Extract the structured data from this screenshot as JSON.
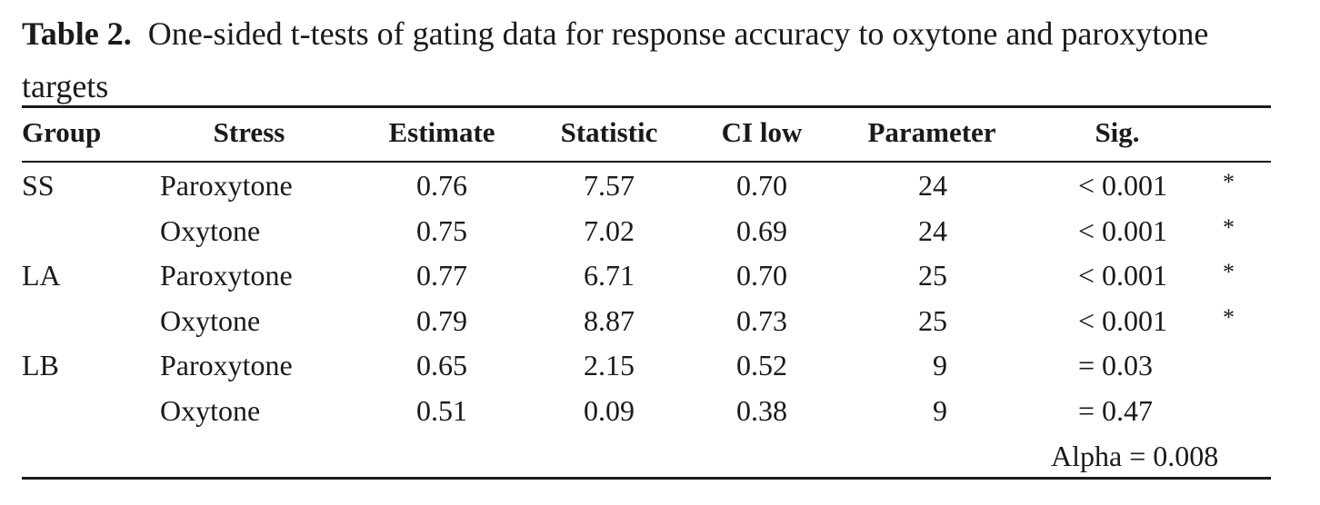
{
  "caption": {
    "label": "Table 2.",
    "text": "One-sided t-tests of gating data for response accuracy to oxytone and paroxytone targets"
  },
  "headers": [
    "Group",
    "Stress",
    "Estimate",
    "Statistic",
    "CI low",
    "Parameter",
    "Sig."
  ],
  "rows": [
    {
      "group": "SS",
      "stress": "Paroxytone",
      "estimate": "0.76",
      "statistic": "7.57",
      "ci_low": "0.70",
      "parameter": "24",
      "sig": "< 0.001",
      "star": "*"
    },
    {
      "group": "",
      "stress": "Oxytone",
      "estimate": "0.75",
      "statistic": "7.02",
      "ci_low": "0.69",
      "parameter": "24",
      "sig": "< 0.001",
      "star": "*"
    },
    {
      "group": "LA",
      "stress": "Paroxytone",
      "estimate": "0.77",
      "statistic": "6.71",
      "ci_low": "0.70",
      "parameter": "25",
      "sig": "< 0.001",
      "star": "*"
    },
    {
      "group": "",
      "stress": "Oxytone",
      "estimate": "0.79",
      "statistic": "8.87",
      "ci_low": "0.73",
      "parameter": "25",
      "sig": "< 0.001",
      "star": "*"
    },
    {
      "group": "LB",
      "stress": "Paroxytone",
      "estimate": "0.65",
      "statistic": "2.15",
      "ci_low": "0.52",
      "parameter": "9",
      "sig": "= 0.03",
      "star": ""
    },
    {
      "group": "",
      "stress": "Oxytone",
      "estimate": "0.51",
      "statistic": "0.09",
      "ci_low": "0.38",
      "parameter": "9",
      "sig": "= 0.47",
      "star": ""
    }
  ],
  "footer": {
    "alpha": "Alpha = 0.008"
  }
}
